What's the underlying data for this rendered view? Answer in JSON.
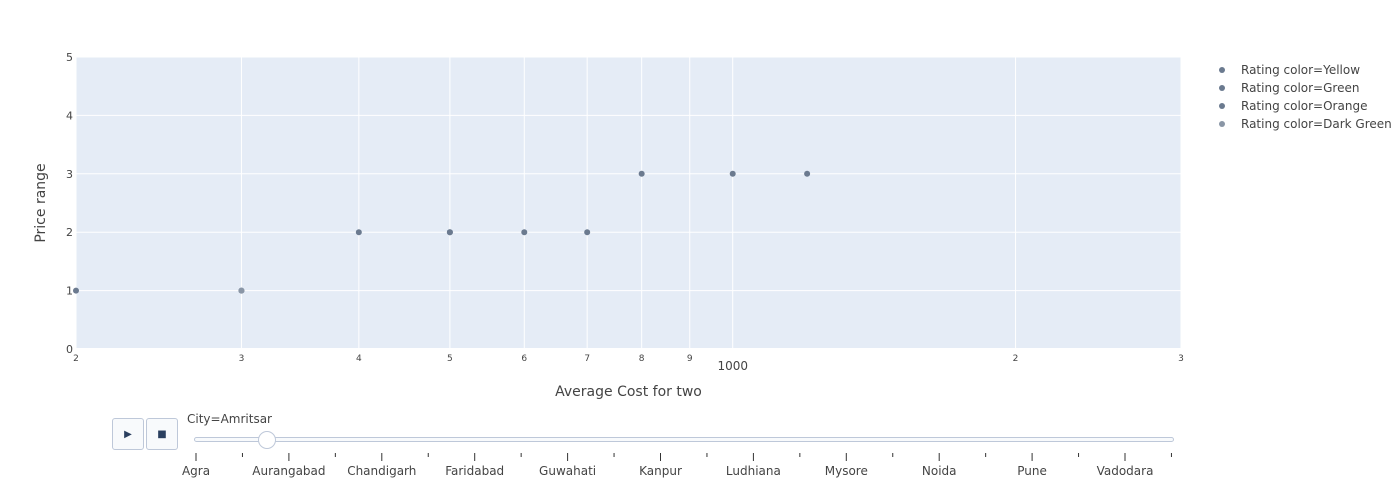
{
  "chart_data": {
    "type": "scatter",
    "title": "",
    "xlabel": "Average Cost for two",
    "ylabel": "Price range",
    "x_scale": "log",
    "xlim": [
      200,
      3000
    ],
    "ylim": [
      0,
      5
    ],
    "x_ticks": [
      {
        "value": 200,
        "label": "2"
      },
      {
        "value": 300,
        "label": "3"
      },
      {
        "value": 400,
        "label": "4"
      },
      {
        "value": 500,
        "label": "5"
      },
      {
        "value": 600,
        "label": "6"
      },
      {
        "value": 700,
        "label": "7"
      },
      {
        "value": 800,
        "label": "8"
      },
      {
        "value": 900,
        "label": "9"
      },
      {
        "value": 1000,
        "label": "1000"
      },
      {
        "value": 2000,
        "label": "2"
      },
      {
        "value": 3000,
        "label": "3"
      }
    ],
    "y_ticks": [
      0,
      1,
      2,
      3,
      4,
      5
    ],
    "grid": true,
    "legend_position": "top-right",
    "series": [
      {
        "name": "Rating color=Yellow",
        "color": "#6b7a8f",
        "points": [
          {
            "x": 200,
            "y": 1
          },
          {
            "x": 300,
            "y": 1
          },
          {
            "x": 400,
            "y": 2
          },
          {
            "x": 500,
            "y": 2
          },
          {
            "x": 800,
            "y": 3
          }
        ]
      },
      {
        "name": "Rating color=Green",
        "color": "#6b7a8f",
        "points": [
          {
            "x": 500,
            "y": 2
          },
          {
            "x": 600,
            "y": 2
          },
          {
            "x": 1000,
            "y": 3
          }
        ]
      },
      {
        "name": "Rating color=Orange",
        "color": "#6b7a8f",
        "points": [
          {
            "x": 700,
            "y": 2
          },
          {
            "x": 1200,
            "y": 3
          }
        ]
      },
      {
        "name": "Rating color=Dark Green",
        "color": "#8a96a6",
        "points": [
          {
            "x": 300,
            "y": 1
          }
        ]
      }
    ]
  },
  "controls": {
    "play_icon": "play-icon",
    "play_label": "▶",
    "stop_icon": "stop-icon",
    "stop_label": "■",
    "current_value_label": "City=Amritsar",
    "slider_fraction": 0.074,
    "labeled_steps": [
      "Agra",
      "Aurangabad",
      "Chandigarh",
      "Faridabad",
      "Guwahati",
      "Kanpur",
      "Ludhiana",
      "Mysore",
      "Noida",
      "Pune",
      "Vadodara"
    ]
  }
}
